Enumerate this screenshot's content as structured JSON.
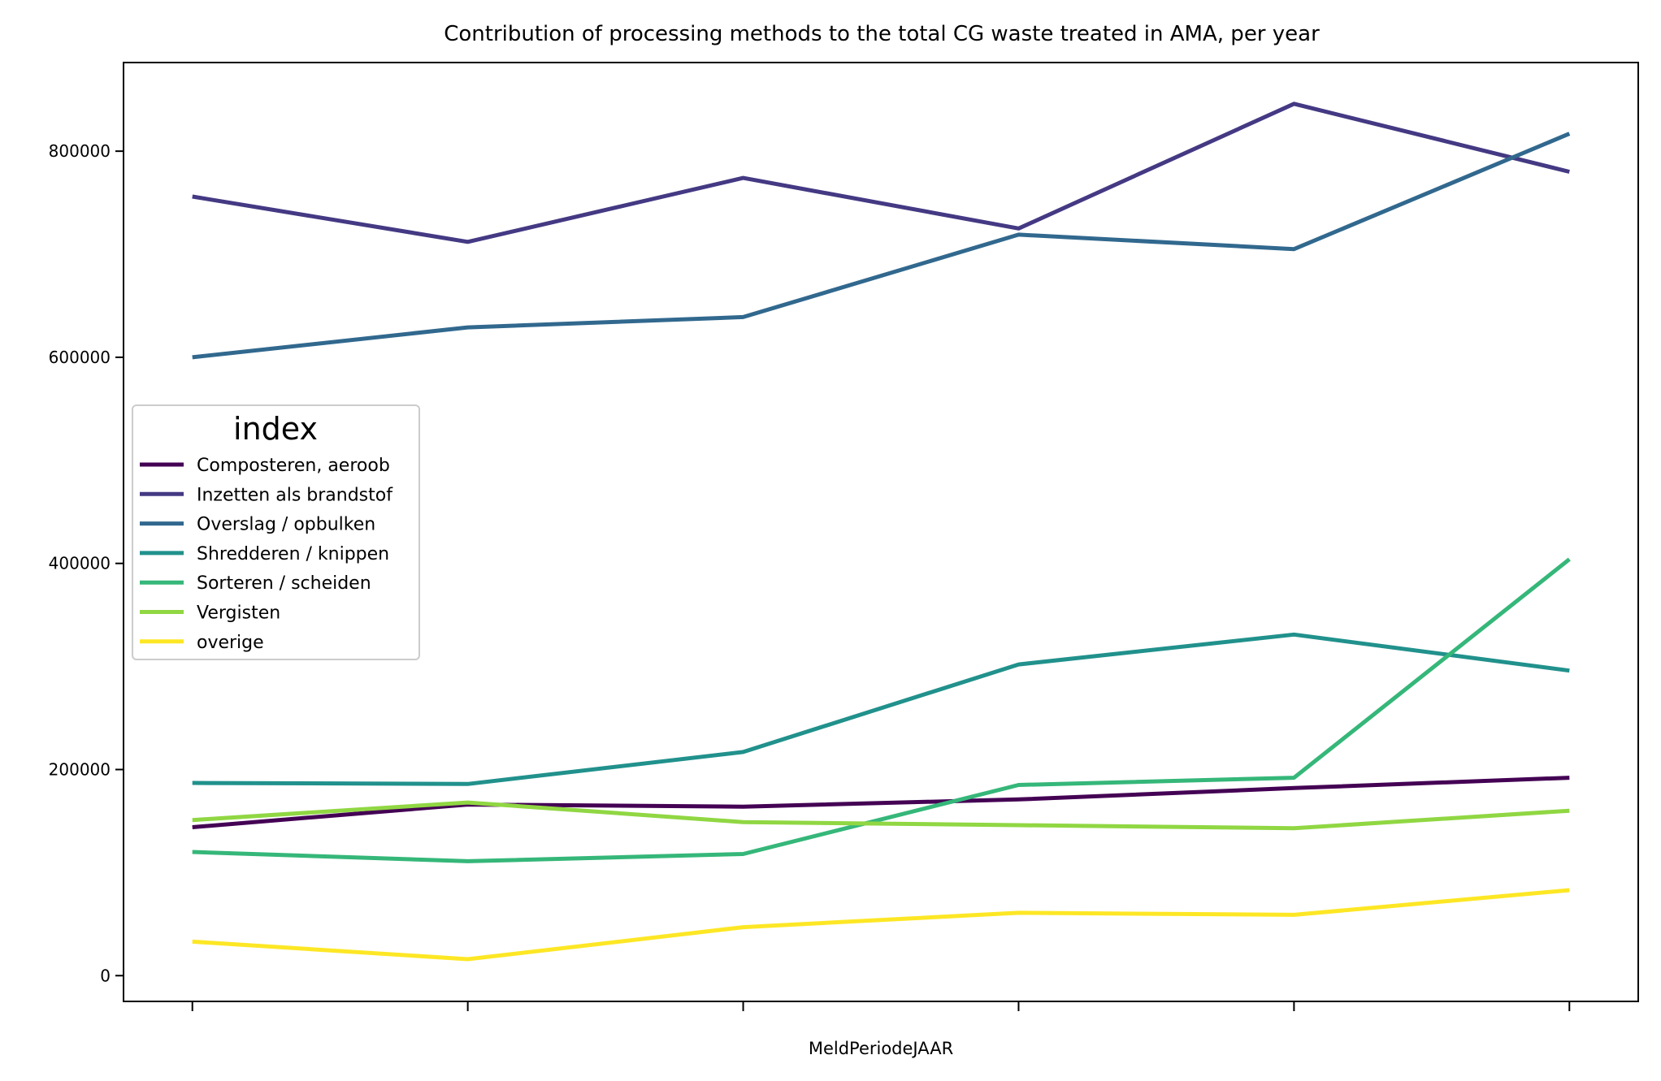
{
  "chart_data": {
    "type": "line",
    "title": "Contribution of processing methods to the total CG waste treated in AMA, per year",
    "xlabel": "MeldPeriodeJAAR",
    "ylabel": "",
    "x": [
      0,
      1,
      2,
      3,
      4,
      5
    ],
    "x_tick_labels": [
      "",
      "",
      "",
      "",
      "",
      ""
    ],
    "xlim": [
      -0.25,
      5.25
    ],
    "ylim": [
      -25000,
      886000
    ],
    "y_ticks": [
      0,
      200000,
      400000,
      600000,
      800000
    ],
    "y_tick_labels": [
      "0",
      "200000",
      "400000",
      "600000",
      "800000"
    ],
    "grid": false,
    "legend": {
      "title": "index",
      "placement": "center-left"
    },
    "series": [
      {
        "name": "Composteren, aeroob",
        "color": "#440154",
        "values": [
          144000,
          166000,
          164000,
          171000,
          182000,
          192000
        ]
      },
      {
        "name": "Inzetten als brandstof",
        "color": "#443983",
        "values": [
          756000,
          712000,
          774000,
          725000,
          846000,
          780000
        ]
      },
      {
        "name": "Overslag / opbulken",
        "color": "#31688e",
        "values": [
          600000,
          629000,
          639000,
          719000,
          705000,
          817000
        ]
      },
      {
        "name": "Shredderen / knippen",
        "color": "#21918c",
        "values": [
          187000,
          186000,
          217000,
          302000,
          331000,
          296000
        ]
      },
      {
        "name": "Sorteren / scheiden",
        "color": "#35b779",
        "values": [
          120000,
          111000,
          118000,
          185000,
          192000,
          404000
        ]
      },
      {
        "name": "Vergisten",
        "color": "#90d743",
        "values": [
          151000,
          168000,
          149000,
          146000,
          143000,
          160000
        ]
      },
      {
        "name": "overige",
        "color": "#fde725",
        "values": [
          33000,
          16000,
          47000,
          61000,
          59000,
          83000
        ]
      }
    ]
  }
}
